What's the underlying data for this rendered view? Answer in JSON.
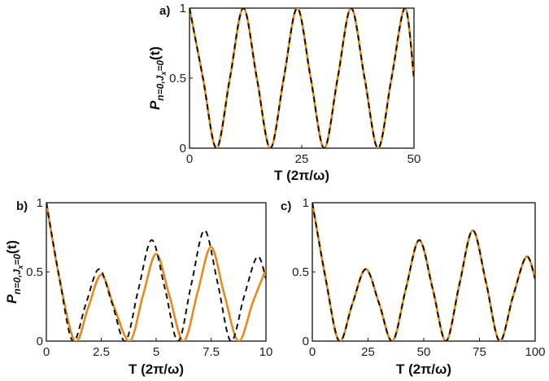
{
  "figure": {
    "colors": {
      "solid": "#e8891c",
      "dashed": "#111111"
    },
    "ylabel_main": "P",
    "ylabel_sub_n": "n=0,J",
    "ylabel_sub_x": "x",
    "ylabel_sub_end": "=0",
    "ylabel_tail": "(t)"
  },
  "chart_data": [
    {
      "panel": "a)",
      "type": "line",
      "xlabel": "T (2π/ω)",
      "ylabel": "P_{n=0,J_x=0}(t)",
      "xlim": [
        0,
        50
      ],
      "ylim": [
        0,
        1
      ],
      "xticks": [
        "0",
        "25",
        "50"
      ],
      "yticks": [
        "0",
        "0.5",
        "1"
      ],
      "grid": false,
      "series": [
        {
          "style": "solid-orange",
          "x": [
            0,
            3,
            6,
            9,
            12,
            15,
            18,
            21,
            24,
            27,
            30,
            33,
            36,
            39,
            42,
            45,
            48,
            50
          ],
          "y": [
            1,
            0.5,
            0,
            0.5,
            1,
            0.5,
            0,
            0.5,
            1,
            0.5,
            0,
            0.5,
            1,
            0.5,
            0,
            0.5,
            1,
            0.5
          ]
        },
        {
          "style": "dashed-black",
          "x": [
            0,
            3,
            6,
            9,
            12,
            15,
            18,
            21,
            24,
            27,
            30,
            33,
            36,
            39,
            42,
            45,
            48,
            50
          ],
          "y": [
            1,
            0.5,
            0,
            0.5,
            1,
            0.5,
            0,
            0.5,
            1,
            0.5,
            0,
            0.5,
            1,
            0.5,
            0,
            0.5,
            1,
            0.5
          ]
        }
      ]
    },
    {
      "panel": "b)",
      "type": "line",
      "xlabel": "T (2π/ω)",
      "ylabel": "P_{n=0,J_x=0}(t)",
      "xlim": [
        0,
        10
      ],
      "ylim": [
        0,
        1
      ],
      "xticks": [
        "0",
        "2.5",
        "5",
        "7.5",
        "10"
      ],
      "yticks": [
        "0",
        "0.5",
        "1"
      ],
      "grid": false,
      "series": [
        {
          "style": "solid-orange",
          "x": [
            0,
            0.6,
            1.3,
            1.9,
            2.5,
            3.1,
            3.8,
            4.4,
            5.0,
            5.6,
            6.25,
            6.9,
            7.5,
            8.1,
            8.75,
            9.4,
            10
          ],
          "y": [
            1,
            0.45,
            0,
            0.24,
            0.48,
            0.24,
            0,
            0.33,
            0.63,
            0.33,
            0,
            0.36,
            0.68,
            0.34,
            0,
            0.28,
            0.52
          ]
        },
        {
          "style": "dashed-black",
          "x": [
            0,
            0.6,
            1.2,
            1.8,
            2.4,
            3.0,
            3.6,
            4.2,
            4.8,
            5.4,
            6.0,
            6.6,
            7.2,
            7.8,
            8.4,
            9.0,
            9.6,
            10
          ],
          "y": [
            1,
            0.45,
            0,
            0.27,
            0.52,
            0.27,
            0,
            0.38,
            0.73,
            0.38,
            0,
            0.41,
            0.8,
            0.42,
            0,
            0.32,
            0.61,
            0.45
          ]
        }
      ]
    },
    {
      "panel": "c)",
      "type": "line",
      "xlabel": "T (2π/ω)",
      "ylabel": "",
      "xlim": [
        0,
        100
      ],
      "ylim": [
        0,
        1
      ],
      "xticks": [
        "0",
        "25",
        "50",
        "75",
        "100"
      ],
      "yticks": [
        "0",
        "0.5",
        "1"
      ],
      "grid": false,
      "series": [
        {
          "style": "solid-orange",
          "x": [
            0,
            6,
            12,
            18,
            24,
            30,
            36,
            42,
            48,
            54,
            60,
            66,
            72,
            78,
            84,
            90,
            96,
            100
          ],
          "y": [
            1,
            0.45,
            0,
            0.27,
            0.52,
            0.27,
            0,
            0.38,
            0.73,
            0.38,
            0,
            0.41,
            0.8,
            0.42,
            0,
            0.32,
            0.61,
            0.45
          ]
        },
        {
          "style": "dashed-black",
          "x": [
            0,
            6,
            12,
            18,
            24,
            30,
            36,
            42,
            48,
            54,
            60,
            66,
            72,
            78,
            84,
            90,
            96,
            100
          ],
          "y": [
            1,
            0.45,
            0,
            0.27,
            0.52,
            0.27,
            0,
            0.38,
            0.73,
            0.38,
            0,
            0.41,
            0.8,
            0.42,
            0,
            0.32,
            0.61,
            0.45
          ]
        }
      ]
    }
  ]
}
